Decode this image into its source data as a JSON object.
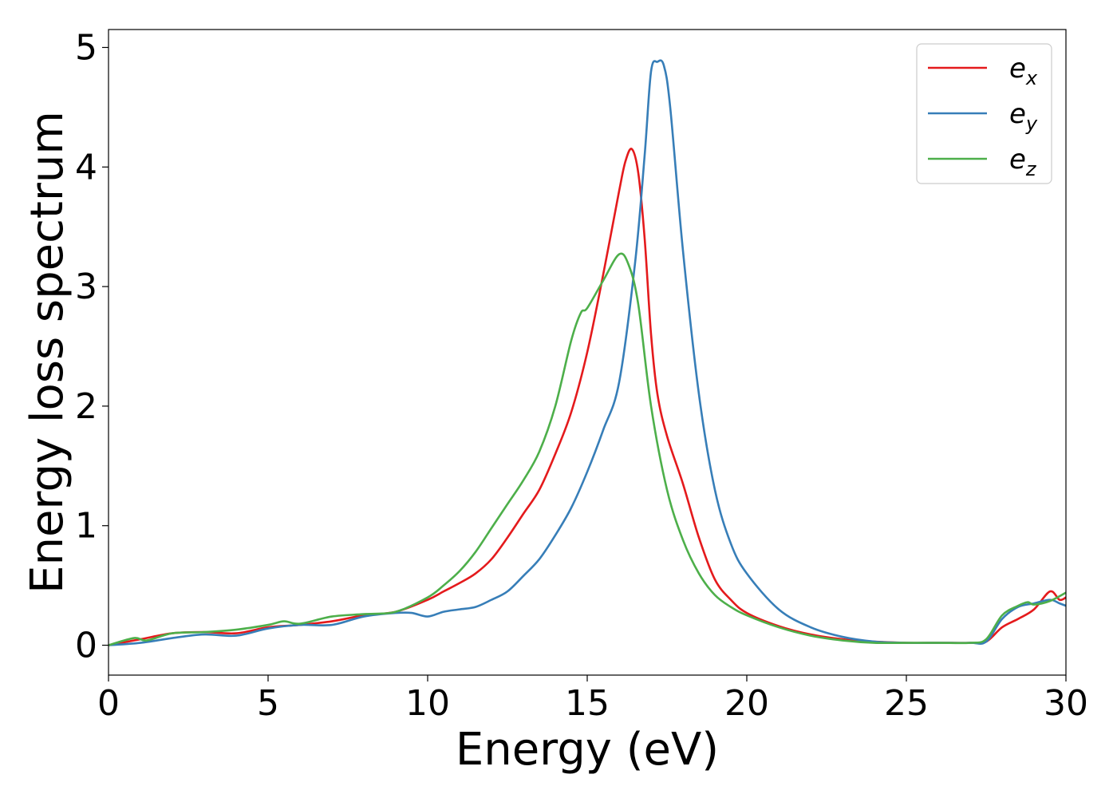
{
  "chart_data": {
    "type": "line",
    "xlabel": "Energy (eV)",
    "ylabel": "Energy loss spectrum",
    "xlim": [
      0,
      30
    ],
    "ylim": [
      -0.25,
      5.15
    ],
    "x_ticks": [
      0,
      5,
      10,
      15,
      20,
      25,
      30
    ],
    "y_ticks": [
      0,
      1,
      2,
      3,
      4,
      5
    ],
    "grid": false,
    "legend_position": "top-right",
    "series": [
      {
        "name": "e_x",
        "label_base": "e",
        "label_sub": "x",
        "color": "#e41a1c",
        "x": [
          0,
          1,
          2,
          3,
          4,
          5,
          6,
          7,
          8,
          9,
          10,
          10.5,
          11,
          11.5,
          12,
          12.5,
          13,
          13.5,
          14,
          14.5,
          15,
          15.5,
          16,
          16.2,
          16.4,
          16.6,
          16.8,
          17,
          17.2,
          17.5,
          18,
          18.5,
          19,
          19.5,
          20,
          21,
          22,
          23,
          24,
          25,
          26,
          27,
          27.5,
          28,
          28.5,
          29,
          29.5,
          29.8,
          30
        ],
        "y": [
          0.0,
          0.05,
          0.1,
          0.11,
          0.1,
          0.15,
          0.17,
          0.2,
          0.25,
          0.28,
          0.38,
          0.45,
          0.52,
          0.6,
          0.72,
          0.9,
          1.1,
          1.3,
          1.6,
          1.95,
          2.45,
          3.1,
          3.8,
          4.05,
          4.15,
          3.95,
          3.4,
          2.6,
          2.1,
          1.75,
          1.35,
          0.9,
          0.55,
          0.38,
          0.27,
          0.16,
          0.09,
          0.05,
          0.03,
          0.02,
          0.02,
          0.02,
          0.03,
          0.15,
          0.22,
          0.3,
          0.45,
          0.38,
          0.4
        ]
      },
      {
        "name": "e_y",
        "label_base": "e",
        "label_sub": "y",
        "color": "#377eb8",
        "x": [
          0,
          1,
          2,
          3,
          4,
          5,
          6,
          7,
          8,
          9,
          9.5,
          10,
          10.5,
          11,
          11.5,
          12,
          12.5,
          13,
          13.5,
          14,
          14.5,
          15,
          15.5,
          16,
          16.5,
          16.8,
          17,
          17.2,
          17.4,
          17.6,
          18,
          18.5,
          19,
          19.5,
          20,
          21,
          22,
          23,
          24,
          25,
          26,
          27,
          27.5,
          28,
          28.5,
          29,
          29.5,
          29.8,
          30
        ],
        "y": [
          0.0,
          0.02,
          0.06,
          0.09,
          0.08,
          0.14,
          0.17,
          0.17,
          0.24,
          0.27,
          0.27,
          0.24,
          0.28,
          0.3,
          0.32,
          0.38,
          0.45,
          0.58,
          0.72,
          0.92,
          1.15,
          1.45,
          1.8,
          2.2,
          3.2,
          4.1,
          4.8,
          4.88,
          4.85,
          4.5,
          3.3,
          2.1,
          1.3,
          0.85,
          0.6,
          0.3,
          0.15,
          0.07,
          0.03,
          0.02,
          0.02,
          0.02,
          0.03,
          0.22,
          0.32,
          0.35,
          0.38,
          0.35,
          0.33
        ]
      },
      {
        "name": "e_z",
        "label_base": "e",
        "label_sub": "z",
        "color": "#4daf4a",
        "x": [
          0,
          0.8,
          1.2,
          2,
          3,
          4,
          5,
          5.5,
          6,
          7,
          8,
          9,
          10,
          10.5,
          11,
          11.5,
          12,
          12.5,
          13,
          13.5,
          14,
          14.5,
          14.8,
          15,
          15.5,
          16,
          16.3,
          16.6,
          17,
          17.5,
          18,
          18.5,
          19,
          19.5,
          20,
          21,
          22,
          23,
          24,
          25,
          26,
          27,
          27.5,
          28,
          28.5,
          28.8,
          29,
          29.5,
          30
        ],
        "y": [
          0.0,
          0.06,
          0.04,
          0.1,
          0.11,
          0.13,
          0.17,
          0.2,
          0.18,
          0.24,
          0.26,
          0.28,
          0.4,
          0.5,
          0.62,
          0.78,
          0.98,
          1.18,
          1.38,
          1.62,
          2.0,
          2.55,
          2.78,
          2.82,
          3.05,
          3.27,
          3.18,
          2.85,
          2.0,
          1.3,
          0.88,
          0.6,
          0.42,
          0.32,
          0.25,
          0.15,
          0.08,
          0.04,
          0.02,
          0.02,
          0.02,
          0.02,
          0.05,
          0.25,
          0.33,
          0.36,
          0.34,
          0.37,
          0.44
        ]
      }
    ]
  }
}
